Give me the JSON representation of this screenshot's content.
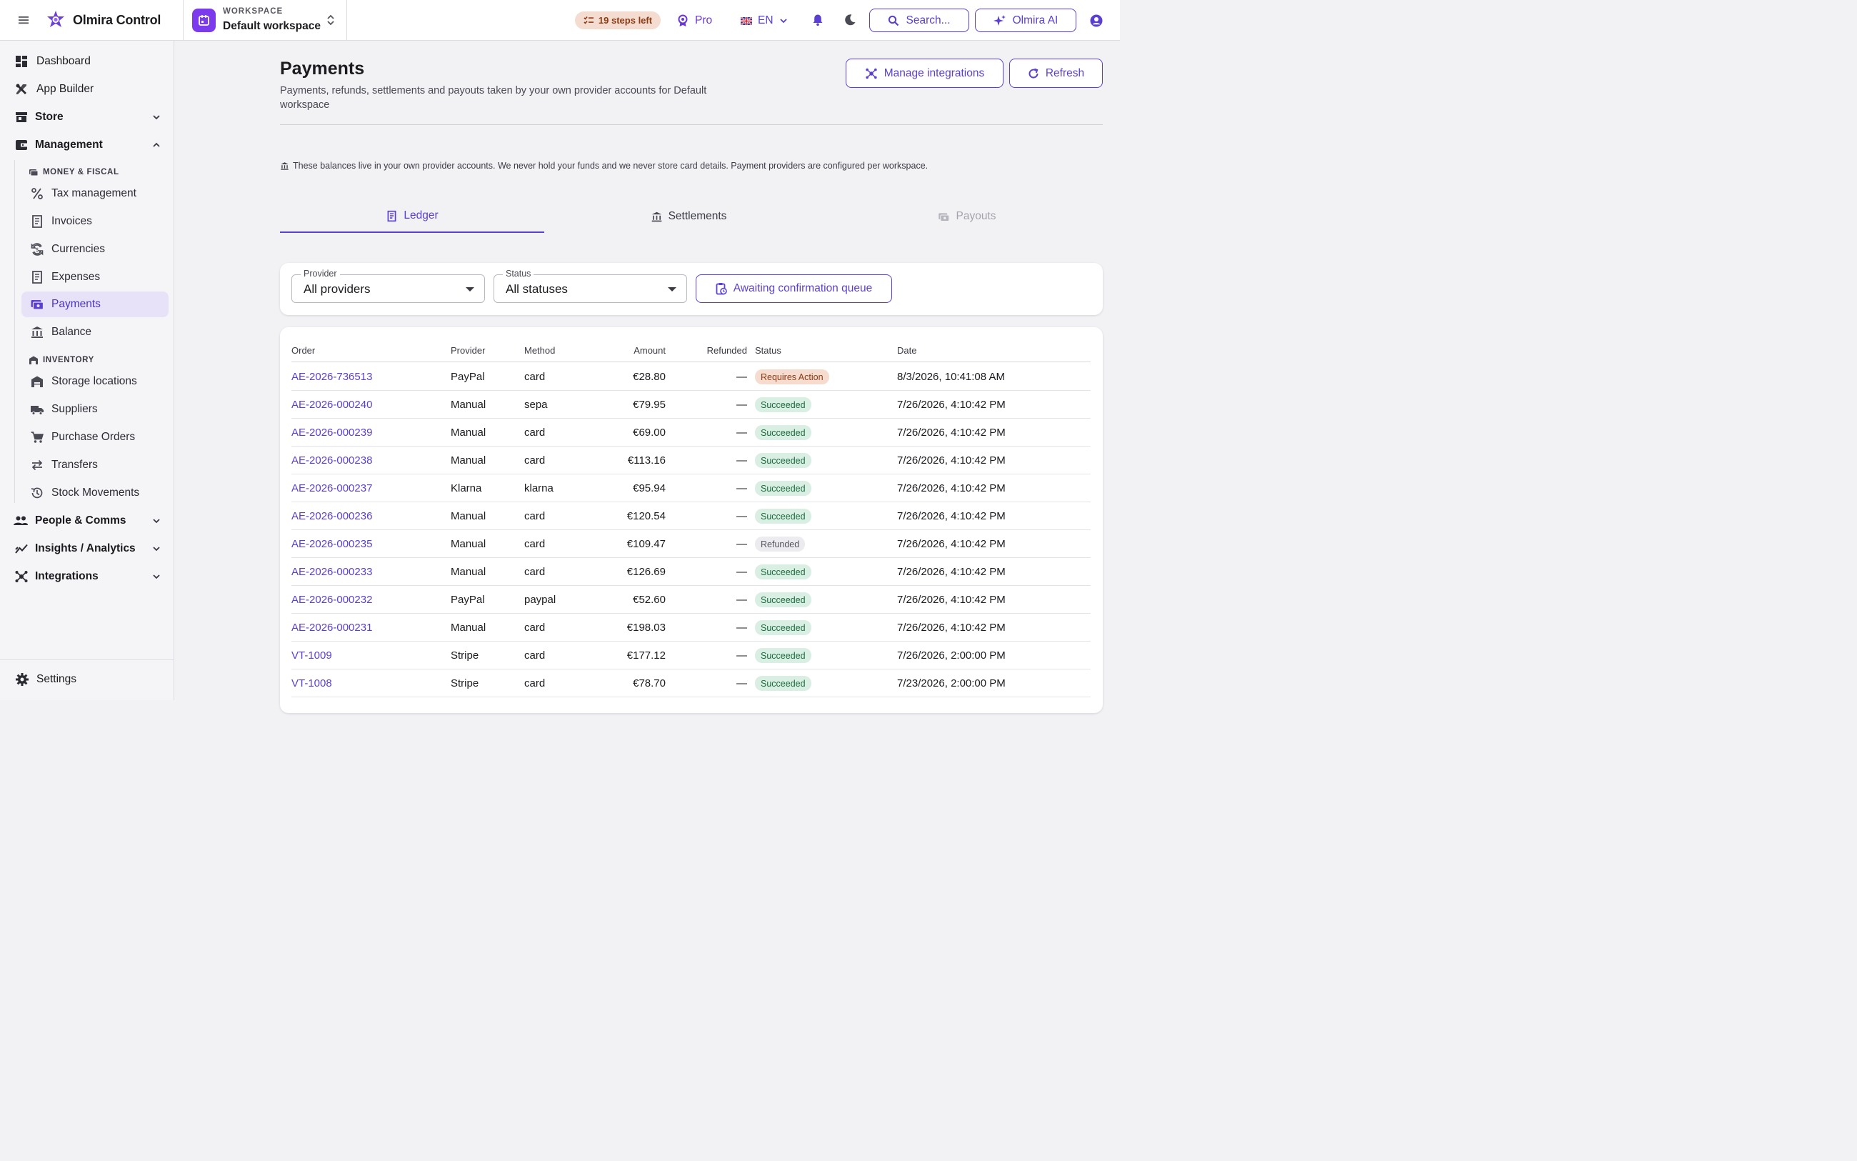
{
  "app": {
    "brand": "Olmira Control",
    "workspace_caption": "WORKSPACE",
    "workspace_name": "Default workspace",
    "steps_badge": "19 steps left",
    "plan": "Pro",
    "language": "EN",
    "search_label": "Search...",
    "ai_label": "Olmira AI",
    "accent_color": "#5b3fd1"
  },
  "sidebar": {
    "top_items": [
      {
        "label": "Dashboard",
        "icon": "dashboard-icon"
      },
      {
        "label": "App Builder",
        "icon": "tools-icon"
      },
      {
        "label": "Store",
        "icon": "store-icon"
      },
      {
        "label": "Management",
        "icon": "wallet-icon"
      }
    ],
    "sections": {
      "money": "MONEY & FISCAL",
      "inventory": "INVENTORY"
    },
    "money_items": [
      {
        "label": "Tax management",
        "icon": "percent-icon"
      },
      {
        "label": "Invoices",
        "icon": "receipt-icon"
      },
      {
        "label": "Currencies",
        "icon": "currency-exchange-icon"
      },
      {
        "label": "Expenses",
        "icon": "receipt-icon"
      },
      {
        "label": "Payments",
        "icon": "payments-icon"
      },
      {
        "label": "Balance",
        "icon": "bank-icon"
      }
    ],
    "inventory_items": [
      {
        "label": "Storage locations",
        "icon": "warehouse-icon"
      },
      {
        "label": "Suppliers",
        "icon": "truck-icon"
      },
      {
        "label": "Purchase Orders",
        "icon": "cart-icon"
      },
      {
        "label": "Transfers",
        "icon": "swap-icon"
      },
      {
        "label": "Stock Movements",
        "icon": "history-icon"
      }
    ],
    "bottom_items": [
      {
        "label": "People & Comms",
        "icon": "people-icon"
      },
      {
        "label": "Insights / Analytics",
        "icon": "trend-icon"
      },
      {
        "label": "Integrations",
        "icon": "hub-icon"
      }
    ],
    "settings_label": "Settings"
  },
  "page": {
    "title": "Payments",
    "subtitle": "Payments, refunds, settlements and payouts taken by your own provider accounts for Default workspace",
    "manage_label": "Manage integrations",
    "refresh_label": "Refresh",
    "notice": "These balances live in your own provider accounts. We never hold your funds and we never store card details. Payment providers are configured per workspace."
  },
  "tabs": [
    {
      "label": "Ledger",
      "state": "active"
    },
    {
      "label": "Settlements",
      "state": "normal"
    },
    {
      "label": "Payouts",
      "state": "disabled"
    }
  ],
  "filters": {
    "provider_label": "Provider",
    "provider_value": "All providers",
    "status_label": "Status",
    "status_value": "All statuses",
    "queue_label": "Awaiting confirmation queue"
  },
  "table": {
    "columns": [
      "Order",
      "Provider",
      "Method",
      "Amount",
      "Refunded",
      "Status",
      "Date"
    ],
    "rows": [
      {
        "order": "AE-2026-736513",
        "provider": "PayPal",
        "method": "card",
        "amount": "€28.80",
        "refunded": "—",
        "status": "Requires Action",
        "kind": "ra",
        "date": "8/3/2026, 10:41:08 AM"
      },
      {
        "order": "AE-2026-000240",
        "provider": "Manual",
        "method": "sepa",
        "amount": "€79.95",
        "refunded": "—",
        "status": "Succeeded",
        "kind": "ok",
        "date": "7/26/2026, 4:10:42 PM"
      },
      {
        "order": "AE-2026-000239",
        "provider": "Manual",
        "method": "card",
        "amount": "€69.00",
        "refunded": "—",
        "status": "Succeeded",
        "kind": "ok",
        "date": "7/26/2026, 4:10:42 PM"
      },
      {
        "order": "AE-2026-000238",
        "provider": "Manual",
        "method": "card",
        "amount": "€113.16",
        "refunded": "—",
        "status": "Succeeded",
        "kind": "ok",
        "date": "7/26/2026, 4:10:42 PM"
      },
      {
        "order": "AE-2026-000237",
        "provider": "Klarna",
        "method": "klarna",
        "amount": "€95.94",
        "refunded": "—",
        "status": "Succeeded",
        "kind": "ok",
        "date": "7/26/2026, 4:10:42 PM"
      },
      {
        "order": "AE-2026-000236",
        "provider": "Manual",
        "method": "card",
        "amount": "€120.54",
        "refunded": "—",
        "status": "Succeeded",
        "kind": "ok",
        "date": "7/26/2026, 4:10:42 PM"
      },
      {
        "order": "AE-2026-000235",
        "provider": "Manual",
        "method": "card",
        "amount": "€109.47",
        "refunded": "—",
        "status": "Refunded",
        "kind": "rf",
        "date": "7/26/2026, 4:10:42 PM"
      },
      {
        "order": "AE-2026-000233",
        "provider": "Manual",
        "method": "card",
        "amount": "€126.69",
        "refunded": "—",
        "status": "Succeeded",
        "kind": "ok",
        "date": "7/26/2026, 4:10:42 PM"
      },
      {
        "order": "AE-2026-000232",
        "provider": "PayPal",
        "method": "paypal",
        "amount": "€52.60",
        "refunded": "—",
        "status": "Succeeded",
        "kind": "ok",
        "date": "7/26/2026, 4:10:42 PM"
      },
      {
        "order": "AE-2026-000231",
        "provider": "Manual",
        "method": "card",
        "amount": "€198.03",
        "refunded": "—",
        "status": "Succeeded",
        "kind": "ok",
        "date": "7/26/2026, 4:10:42 PM"
      },
      {
        "order": "VT-1009",
        "provider": "Stripe",
        "method": "card",
        "amount": "€177.12",
        "refunded": "—",
        "status": "Succeeded",
        "kind": "ok",
        "date": "7/26/2026, 2:00:00 PM"
      },
      {
        "order": "VT-1008",
        "provider": "Stripe",
        "method": "card",
        "amount": "€78.70",
        "refunded": "—",
        "status": "Succeeded",
        "kind": "ok",
        "date": "7/23/2026, 2:00:00 PM"
      }
    ]
  }
}
